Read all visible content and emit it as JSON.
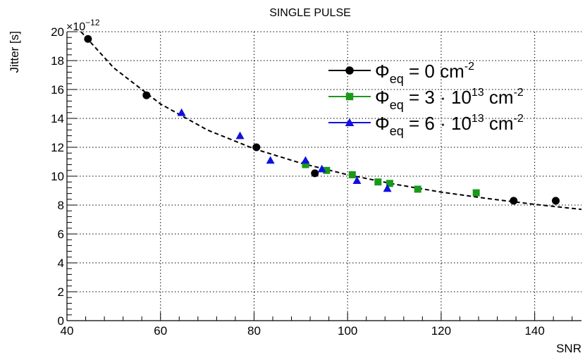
{
  "chart_data": {
    "type": "scatter",
    "title": "SINGLE PULSE",
    "xlabel": "SNR",
    "ylabel": "Jitter [s]",
    "y_multiplier": "×10",
    "y_exponent": "−12",
    "xlim": [
      40,
      150
    ],
    "ylim": [
      0,
      20
    ],
    "x_ticks": [
      40,
      60,
      80,
      100,
      120,
      140
    ],
    "y_ticks": [
      0,
      2,
      4,
      6,
      8,
      10,
      12,
      14,
      16,
      18,
      20
    ],
    "grid": true,
    "legend_position": "top-right",
    "series": [
      {
        "name_main": "Φ",
        "name_sub": "eq",
        "name_rest": " = 0 cm",
        "name_sup": "-2",
        "marker": "circle",
        "color": "#000000",
        "x": [
          44.5,
          57,
          80.5,
          93,
          135.5,
          144.5
        ],
        "y": [
          19.5,
          15.6,
          12.0,
          10.2,
          8.3,
          8.3
        ]
      },
      {
        "name_main": "Φ",
        "name_sub": "eq",
        "name_rest": " = 3 · 10",
        "name_sup2": "13",
        "name_rest2": " cm",
        "name_sup": "-2",
        "marker": "square",
        "color": "#1a9a1a",
        "x": [
          91,
          95.5,
          101,
          106.5,
          109,
          115,
          127.5
        ],
        "y": [
          10.8,
          10.4,
          10.1,
          9.6,
          9.5,
          9.1,
          8.85
        ]
      },
      {
        "name_main": "Φ",
        "name_sub": "eq",
        "name_rest": " = 6 · 10",
        "name_sup2": "13",
        "name_rest2": " cm",
        "name_sup": "-2",
        "marker": "triangle",
        "color": "#1010e0",
        "x": [
          64.5,
          77,
          83.5,
          91,
          94.5,
          102,
          108.5
        ],
        "y": [
          14.4,
          12.8,
          11.1,
          11.1,
          10.5,
          9.7,
          9.15
        ]
      }
    ],
    "fit": {
      "style": "dashed",
      "color": "#000000",
      "x": [
        43,
        50,
        60,
        70,
        80,
        90,
        100,
        110,
        120,
        130,
        140,
        150
      ],
      "y": [
        20.0,
        17.5,
        15.0,
        13.2,
        11.9,
        10.9,
        10.1,
        9.45,
        8.9,
        8.45,
        8.05,
        7.7
      ]
    }
  }
}
